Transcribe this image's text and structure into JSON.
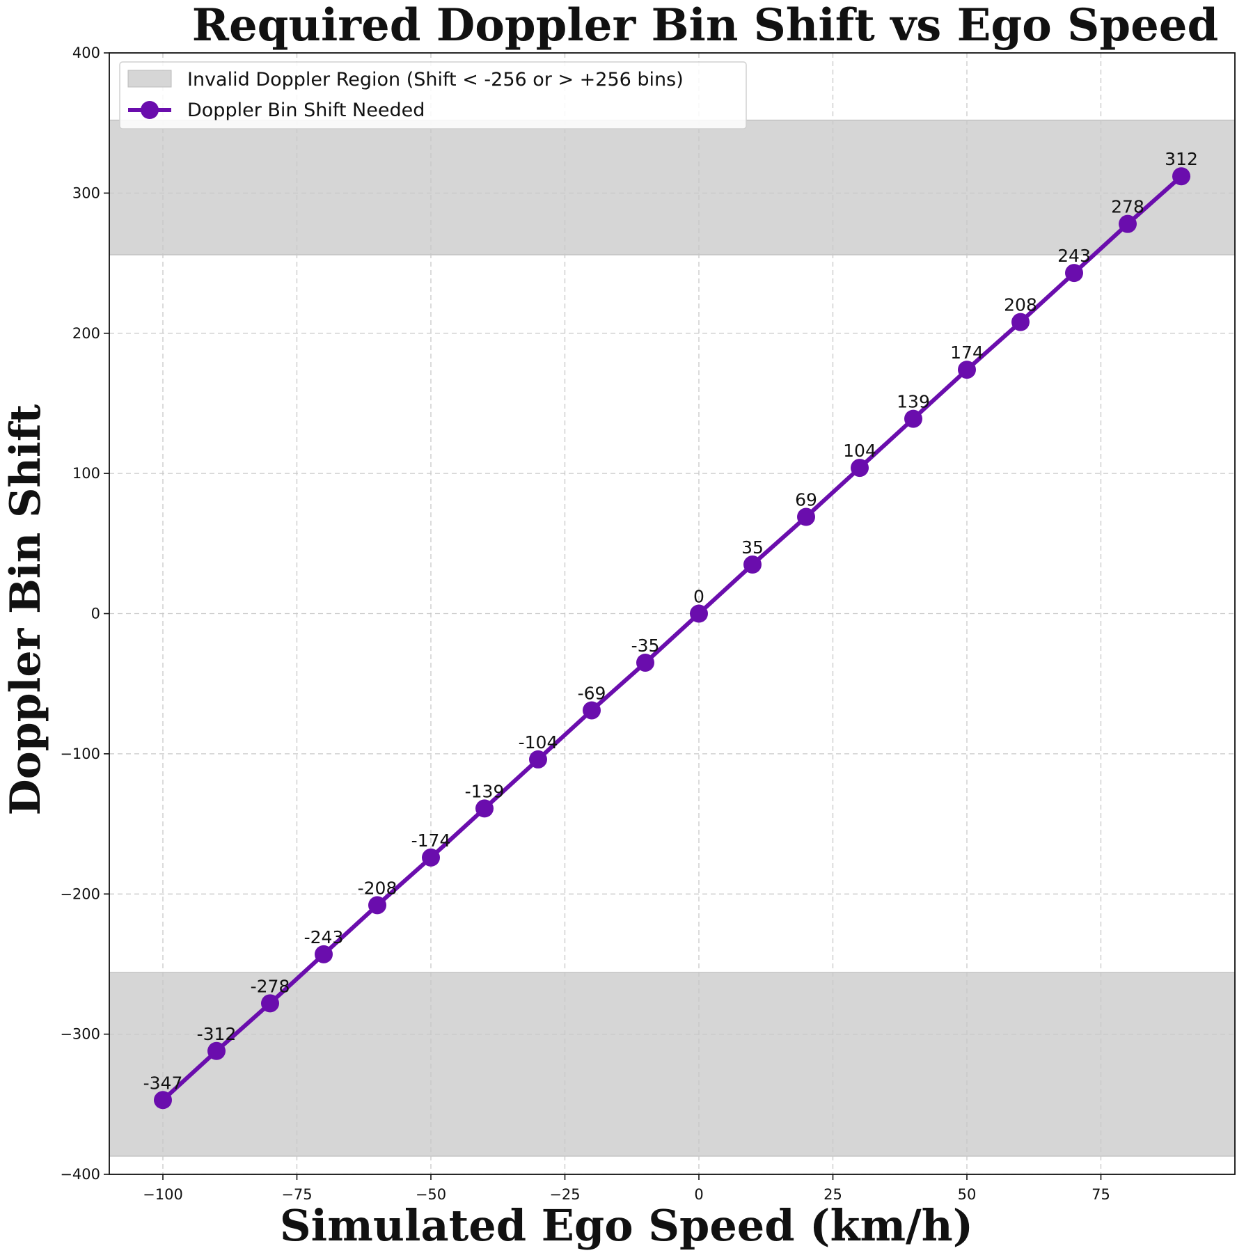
{
  "chart_data": {
    "type": "line",
    "title": "Required Doppler Bin Shift vs Ego Speed",
    "xlabel": "Simulated Ego Speed (km/h)",
    "ylabel": "Doppler Bin Shift",
    "xlim": [
      -110,
      100
    ],
    "ylim": [
      -400,
      400
    ],
    "xticks": [
      -100,
      -75,
      -50,
      -25,
      0,
      25,
      50,
      75
    ],
    "xtick_labels": [
      "−100",
      "−75",
      "−50",
      "−25",
      "0",
      "25",
      "50",
      "75"
    ],
    "yticks": [
      -400,
      -300,
      -200,
      -100,
      0,
      100,
      200,
      300,
      400
    ],
    "ytick_labels": [
      "−400",
      "−300",
      "−200",
      "−100",
      "0",
      "100",
      "200",
      "300",
      "400"
    ],
    "grid": true,
    "legend_position": "top-left",
    "invalid_regions": [
      {
        "y0": 256,
        "y1": 352
      },
      {
        "y0": -387,
        "y1": -256
      }
    ],
    "region_color": "#d6d6d6",
    "series": [
      {
        "name": "Doppler Bin Shift Needed",
        "color": "#6a0dad",
        "x": [
          -100,
          -90,
          -80,
          -70,
          -60,
          -50,
          -40,
          -30,
          -20,
          -10,
          0,
          10,
          20,
          30,
          40,
          50,
          60,
          70,
          80,
          90
        ],
        "y": [
          -347,
          -312,
          -278,
          -243,
          -208,
          -174,
          -139,
          -104,
          -69,
          -35,
          0,
          35,
          69,
          104,
          139,
          174,
          208,
          243,
          278,
          312
        ],
        "labels": [
          "-347",
          "-312",
          "-278",
          "-243",
          "-208",
          "-174",
          "-139",
          "-104",
          "-69",
          "-35",
          "0",
          "35",
          "69",
          "104",
          "139",
          "174",
          "208",
          "243",
          "278",
          "312"
        ]
      }
    ],
    "legend": [
      {
        "label": "Invalid Doppler Region (Shift < -256 or > +256 bins)",
        "kind": "patch"
      },
      {
        "label": "Doppler Bin Shift Needed",
        "kind": "line-marker"
      }
    ]
  }
}
